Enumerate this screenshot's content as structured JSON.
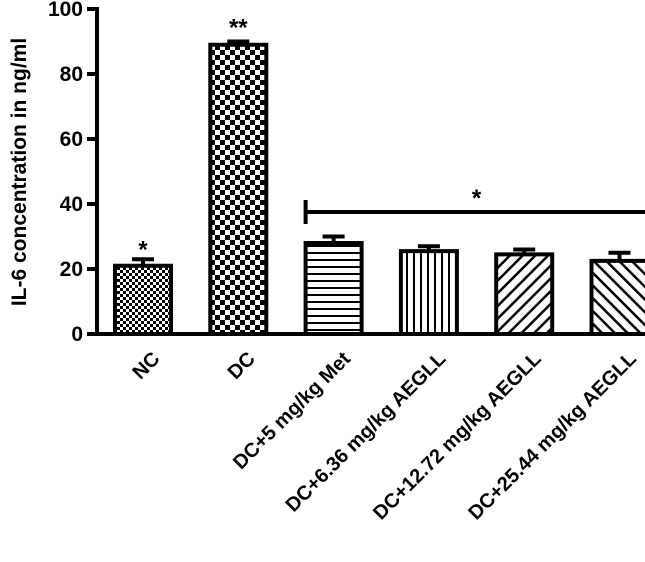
{
  "chart_data": {
    "type": "bar",
    "title": "",
    "xlabel": "",
    "ylabel": "IL-6 concentration in ng/ml",
    "ylim": [
      0,
      100
    ],
    "yticks": [
      0,
      20,
      40,
      60,
      80,
      100
    ],
    "grid": false,
    "legend": "none",
    "categories": [
      "NC",
      "DC",
      "DC+5 mg/kg Met",
      "DC+6.36 mg/kg AEGLL",
      "DC+12.72 mg/kg AEGLL",
      "DC+25.44 mg/kg AEGLL"
    ],
    "values": [
      21,
      89,
      28,
      25.5,
      24.5,
      22.5
    ],
    "errors": [
      2,
      1,
      2,
      1.5,
      1.5,
      2.5
    ],
    "patterns": [
      "fine-checker",
      "checker",
      "horizontal-lines",
      "vertical-lines",
      "diagonal-up",
      "diagonal-down"
    ],
    "bar_color": "#000000",
    "annotations": {
      "nc_marker": "*",
      "dc_marker": "**",
      "group_marker": "*"
    }
  }
}
